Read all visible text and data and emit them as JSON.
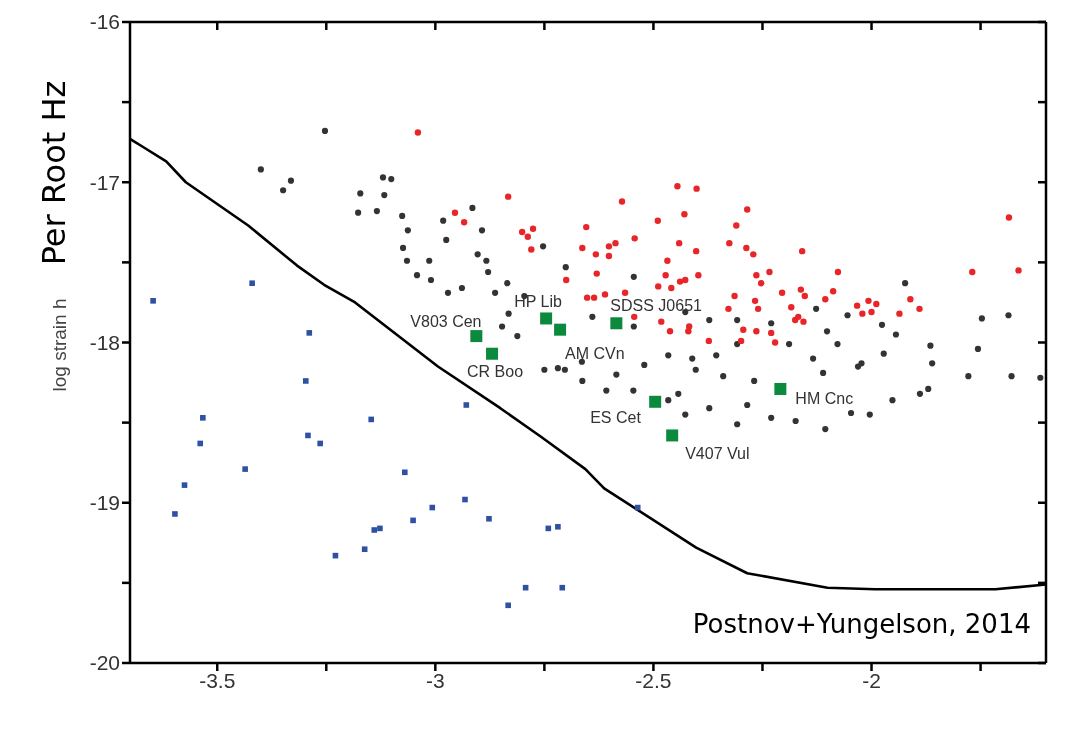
{
  "chart_data": {
    "type": "scatter",
    "ylabel": "log strain h",
    "xlim": [
      -3.7,
      -1.6
    ],
    "xticks": [
      -3.5,
      {
        "value": -3.25,
        "label": null
      },
      -3,
      {
        "value": -2.75,
        "label": null
      },
      -2.5,
      {
        "value": -2.25,
        "label": null
      },
      -2,
      {
        "value": -1.75,
        "label": null
      }
    ],
    "ylim": [
      -20,
      -16
    ],
    "yticks": [
      -20,
      {
        "value": -19.5,
        "label": null
      },
      -19,
      {
        "value": -18.5,
        "label": null
      },
      -18,
      {
        "value": -17.5,
        "label": null
      },
      -17,
      {
        "value": -16.5,
        "label": null
      },
      -16
    ],
    "series": [
      {
        "marker": "circle",
        "color": "#333333",
        "x": [
          -3.253,
          -3.4,
          -3.331,
          -3.349,
          -3.12,
          -3.101,
          -3.172,
          -3.117,
          -3.177,
          -3.134,
          -3.076,
          -3.063,
          -3.074,
          -3.065,
          -2.982,
          -2.915,
          -2.893,
          -2.975,
          -3.014,
          -3.042,
          -3.01,
          -2.971,
          -2.939,
          -2.903,
          -2.879,
          -2.863,
          -2.835,
          -2.847,
          -2.796,
          -2.832,
          -2.812,
          -2.883,
          -2.753,
          -2.701,
          -2.545,
          -1.923,
          -1.747,
          -1.686,
          -1.756,
          -1.865,
          -1.861,
          -1.976,
          -1.944,
          -2.055,
          -2.127,
          -2.102,
          -2.078,
          -2.023,
          -1.972,
          -2.23,
          -2.189,
          -2.134,
          -2.308,
          -2.356,
          -2.411,
          -2.466,
          -2.521,
          -2.664,
          -2.719,
          -2.64,
          -2.545,
          -2.427,
          -2.372,
          -2.308,
          -2.75,
          -2.663,
          -2.585,
          -2.546,
          -2.443,
          -2.466,
          -2.427,
          -2.372,
          -2.308,
          -2.285,
          -2.23,
          -2.174,
          -2.106,
          -2.047,
          -2.004,
          -1.952,
          -1.889,
          -1.87,
          -1.778,
          -1.679,
          -2.111,
          -2.031,
          -2.34,
          -2.269,
          -2.403,
          -2.608,
          -2.703,
          -1.613
        ],
        "values": [
          -16.68,
          -16.92,
          -16.99,
          -17.05,
          -16.97,
          -16.98,
          -17.07,
          -17.08,
          -17.19,
          -17.18,
          -17.21,
          -17.3,
          -17.41,
          -17.49,
          -17.24,
          -17.16,
          -17.3,
          -17.36,
          -17.49,
          -17.58,
          -17.61,
          -17.69,
          -17.66,
          -17.45,
          -17.56,
          -17.69,
          -17.63,
          -17.9,
          -17.71,
          -17.82,
          -17.96,
          -17.49,
          -17.4,
          -17.53,
          -17.59,
          -17.63,
          -17.85,
          -17.83,
          -18.04,
          -18.02,
          -18.13,
          -17.89,
          -17.95,
          -17.83,
          -17.79,
          -17.93,
          -18.01,
          -18.13,
          -18.07,
          -17.88,
          -18.01,
          -18.1,
          -18.01,
          -18.08,
          -18.1,
          -18.08,
          -18.14,
          -18.12,
          -18.16,
          -17.84,
          -17.9,
          -17.81,
          -17.86,
          -17.86,
          -18.17,
          -18.24,
          -18.2,
          -18.3,
          -18.32,
          -18.36,
          -18.45,
          -18.41,
          -18.51,
          -18.39,
          -18.47,
          -18.49,
          -18.54,
          -18.44,
          -18.45,
          -18.36,
          -18.32,
          -18.29,
          -18.21,
          -18.21,
          -18.19,
          -18.15,
          -18.21,
          -18.24,
          -18.17,
          -18.3,
          -18.17,
          -18.22
        ]
      },
      {
        "marker": "circle",
        "color": "#e8262a",
        "x": [
          -2.445,
          -2.401,
          -2.572,
          -2.285,
          -2.49,
          -2.429,
          -2.654,
          -2.31,
          -1.685,
          -2.543,
          -2.441,
          -2.326,
          -2.663,
          -2.602,
          -2.587,
          -2.402,
          -2.287,
          -2.159,
          -2.632,
          -2.602,
          -2.271,
          -2.468,
          -1.769,
          -1.663,
          -2.077,
          -2.63,
          -2.472,
          -2.397,
          -2.264,
          -2.234,
          -2.7,
          -2.439,
          -2.427,
          -2.253,
          -2.489,
          -2.459,
          -2.088,
          -2.162,
          -2.205,
          -2.153,
          -2.314,
          -2.106,
          -1.911,
          -2.007,
          -1.989,
          -2.033,
          -2.267,
          -2.184,
          -2.328,
          -2.26,
          -1.89,
          -2.021,
          -2.0,
          -1.936,
          -2.175,
          -2.156,
          -2.168,
          -2.636,
          -2.652,
          -2.611,
          -2.565,
          -2.482,
          -2.418,
          -2.42,
          -2.462,
          -2.294,
          -2.264,
          -2.23,
          -2.221,
          -2.373,
          -2.299,
          -2.544,
          -3.04,
          -2.833,
          -2.955,
          -2.934,
          -2.801,
          -2.776,
          -2.788,
          -2.78
        ],
        "values": [
          -17.025,
          -17.04,
          -17.12,
          -17.17,
          -17.24,
          -17.2,
          -17.28,
          -17.27,
          -17.22,
          -17.35,
          -17.38,
          -17.38,
          -17.41,
          -17.4,
          -17.38,
          -17.43,
          -17.41,
          -17.43,
          -17.45,
          -17.46,
          -17.45,
          -17.49,
          -17.56,
          -17.55,
          -17.56,
          -17.57,
          -17.58,
          -17.58,
          -17.58,
          -17.56,
          -17.61,
          -17.62,
          -17.61,
          -17.63,
          -17.65,
          -17.66,
          -17.68,
          -17.67,
          -17.69,
          -17.71,
          -17.71,
          -17.73,
          -17.73,
          -17.74,
          -17.76,
          -17.77,
          -17.74,
          -17.78,
          -17.79,
          -17.79,
          -17.79,
          -17.82,
          -17.81,
          -17.82,
          -17.86,
          -17.87,
          -17.84,
          -17.72,
          -17.72,
          -17.7,
          -17.69,
          -17.87,
          -17.9,
          -17.93,
          -17.93,
          -17.92,
          -17.93,
          -17.94,
          -18.0,
          -17.99,
          -17.99,
          -17.84,
          -16.69,
          -17.09,
          -17.19,
          -17.25,
          -17.31,
          -17.29,
          -17.34,
          -17.42
        ]
      },
      {
        "marker": "square",
        "color": "#2d51a3",
        "x": [
          -3.647,
          -3.42,
          -3.289,
          -3.297,
          -3.533,
          -3.539,
          -3.292,
          -3.264,
          -3.147,
          -2.929,
          -3.436,
          -3.575,
          -3.597,
          -3.07,
          -2.932,
          -3.007,
          -3.051,
          -2.877,
          -3.14,
          -3.127,
          -3.162,
          -3.229,
          -2.793,
          -2.833,
          -2.741,
          -2.719,
          -2.709,
          -2.536
        ],
        "values": [
          -17.74,
          -17.63,
          -17.94,
          -18.24,
          -18.47,
          -18.63,
          -18.58,
          -18.63,
          -18.48,
          -18.39,
          -18.79,
          -18.89,
          -19.07,
          -18.81,
          -18.98,
          -19.03,
          -19.11,
          -19.1,
          -19.17,
          -19.16,
          -19.29,
          -19.33,
          -19.53,
          -19.64,
          -19.16,
          -19.15,
          -19.53,
          -19.03
        ]
      },
      {
        "type": "line",
        "color": "#000000",
        "x": [
          -3.7,
          -3.67,
          -3.617,
          -3.572,
          -3.429,
          -3.317,
          -3.255,
          -3.184,
          -2.994,
          -2.851,
          -2.757,
          -2.656,
          -2.613,
          -2.402,
          -2.285,
          -2.101,
          -1.991,
          -1.716,
          -1.6
        ],
        "values": [
          -16.73,
          -16.78,
          -16.87,
          -17.0,
          -17.27,
          -17.52,
          -17.64,
          -17.75,
          -18.15,
          -18.41,
          -18.59,
          -18.79,
          -18.91,
          -19.28,
          -19.44,
          -19.53,
          -19.54,
          -19.54,
          -19.51
        ]
      },
      {
        "marker": "square",
        "color": "#0b8a3e",
        "x": [
          -2.906,
          -2.87,
          -2.746,
          -2.714,
          -2.585,
          -2.496,
          -2.457,
          -2.209
        ],
        "values": [
          -17.96,
          -18.07,
          -17.85,
          -17.92,
          -17.88,
          -18.37,
          -18.58,
          -18.29
        ]
      }
    ],
    "annotations": [
      "Per Root Hz",
      "Postnov+Yungelson, 2014",
      {
        "text": "V803 Cen",
        "x": -2.906,
        "y": -17.96
      },
      {
        "text": "CR Boo",
        "x": -2.87,
        "y": -18.07
      },
      {
        "text": "HP Lib",
        "x": -2.746,
        "y": -17.85
      },
      {
        "text": "AM CVn",
        "x": -2.714,
        "y": -17.92
      },
      {
        "text": "SDSS J0651",
        "x": -2.585,
        "y": -17.88
      },
      {
        "text": "ES Cet",
        "x": -2.496,
        "y": -18.37
      },
      {
        "text": "V407 Vul",
        "x": -2.457,
        "y": -18.58
      },
      {
        "text": "HM Cnc",
        "x": -2.209,
        "y": -18.29
      }
    ]
  }
}
